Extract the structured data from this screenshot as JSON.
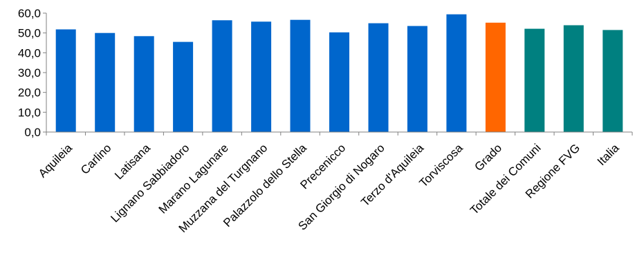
{
  "chart_data": {
    "type": "bar",
    "title": "",
    "xlabel": "",
    "ylabel": "",
    "ylim": [
      0,
      60
    ],
    "y_ticks": [
      0,
      10,
      20,
      30,
      40,
      50,
      60
    ],
    "y_tick_labels": [
      "0,0",
      "10,0",
      "20,0",
      "30,0",
      "40,0",
      "50,0",
      "60,0"
    ],
    "grid": false,
    "legend": "none",
    "categories": [
      "Aquileia",
      "Carlino",
      "Latisana",
      "Lignano Sabbiadoro",
      "Marano Lagunare",
      "Muzzana del Turgnano",
      "Palazzolo dello Stella",
      "Precenicco",
      "San Giorgio di Nogaro",
      "Terzo d'Aquileia",
      "Torviscosa",
      "Grado",
      "Totale dei Comuni",
      "Regione FVG",
      "Italia"
    ],
    "values": [
      51.8,
      50.0,
      48.4,
      45.5,
      56.4,
      55.7,
      56.6,
      50.3,
      54.9,
      53.5,
      59.4,
      55.2,
      52.1,
      53.9,
      51.5
    ],
    "bar_colors": [
      "#0066CC",
      "#0066CC",
      "#0066CC",
      "#0066CC",
      "#0066CC",
      "#0066CC",
      "#0066CC",
      "#0066CC",
      "#0066CC",
      "#0066CC",
      "#0066CC",
      "#FF6600",
      "#008080",
      "#008080",
      "#008080"
    ]
  }
}
